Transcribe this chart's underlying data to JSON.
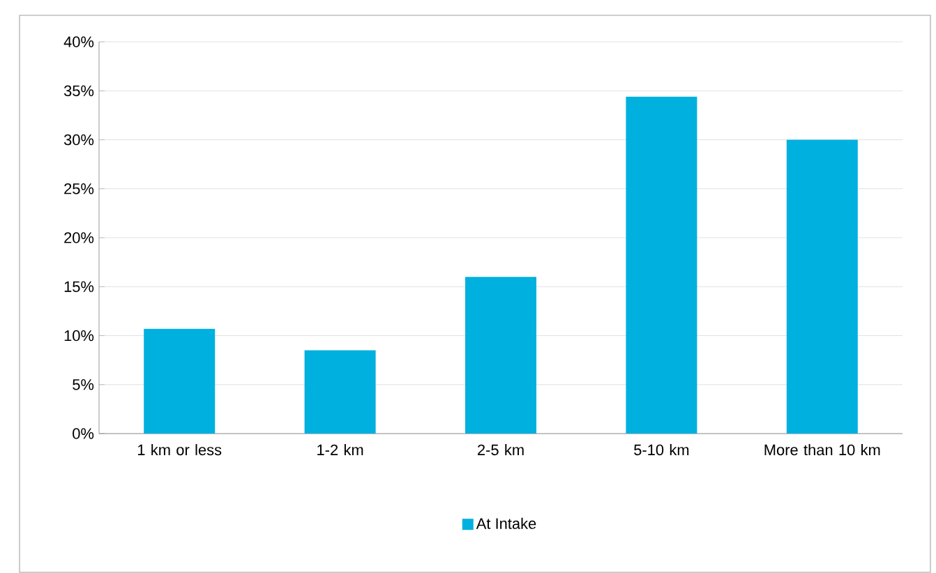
{
  "chart_data": {
    "type": "bar",
    "categories": [
      "1 km or less",
      "1-2 km",
      "2-5 km",
      "5-10 km",
      "More than 10 km"
    ],
    "series": [
      {
        "name": "At Intake",
        "color": "#00b0de",
        "values": [
          10.7,
          8.5,
          16.0,
          34.4,
          30.0
        ]
      }
    ],
    "ylim": [
      0,
      40
    ],
    "yticks": [
      {
        "value": 0,
        "label": "0%"
      },
      {
        "value": 5,
        "label": "5%"
      },
      {
        "value": 10,
        "label": "10%"
      },
      {
        "value": 15,
        "label": "15%"
      },
      {
        "value": 20,
        "label": "20%"
      },
      {
        "value": 25,
        "label": "25%"
      },
      {
        "value": 30,
        "label": "30%"
      },
      {
        "value": 35,
        "label": "35%"
      },
      {
        "value": 40,
        "label": "40%"
      }
    ],
    "grid": "y",
    "legend": "bottom"
  }
}
